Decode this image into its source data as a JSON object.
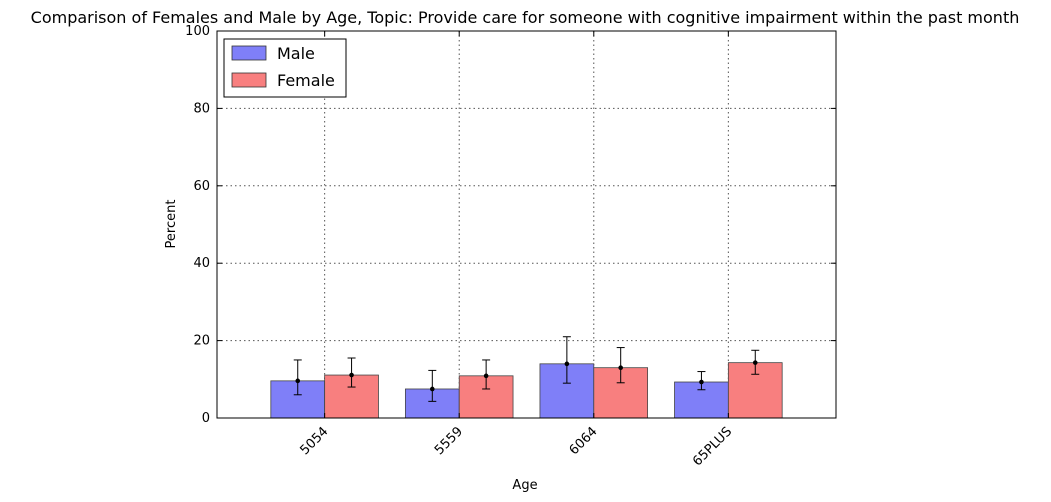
{
  "chart_data": {
    "type": "bar",
    "title": "Comparison of Females and Male by Age, Topic: Provide care for someone with cognitive impairment within the past month",
    "xlabel": "Age",
    "ylabel": "Percent",
    "ylim": [
      0,
      100
    ],
    "yticks": [
      "0",
      "20",
      "40",
      "60",
      "80",
      "100"
    ],
    "grid": true,
    "legend_position": "top-left",
    "categories": [
      "5054",
      "5559",
      "6064",
      "65PLUS"
    ],
    "series": [
      {
        "name": "Male",
        "color": "#7f7ff8",
        "values": [
          9.6,
          7.5,
          14.0,
          9.3
        ],
        "error_low": [
          6.0,
          4.3,
          9.0,
          7.3
        ],
        "error_high": [
          15.0,
          12.3,
          21.0,
          12.0
        ]
      },
      {
        "name": "Female",
        "color": "#f87f7f",
        "values": [
          11.1,
          10.9,
          13.0,
          14.3
        ],
        "error_low": [
          8.0,
          7.5,
          9.1,
          11.3
        ],
        "error_high": [
          15.5,
          15.0,
          18.2,
          17.5
        ]
      }
    ]
  }
}
